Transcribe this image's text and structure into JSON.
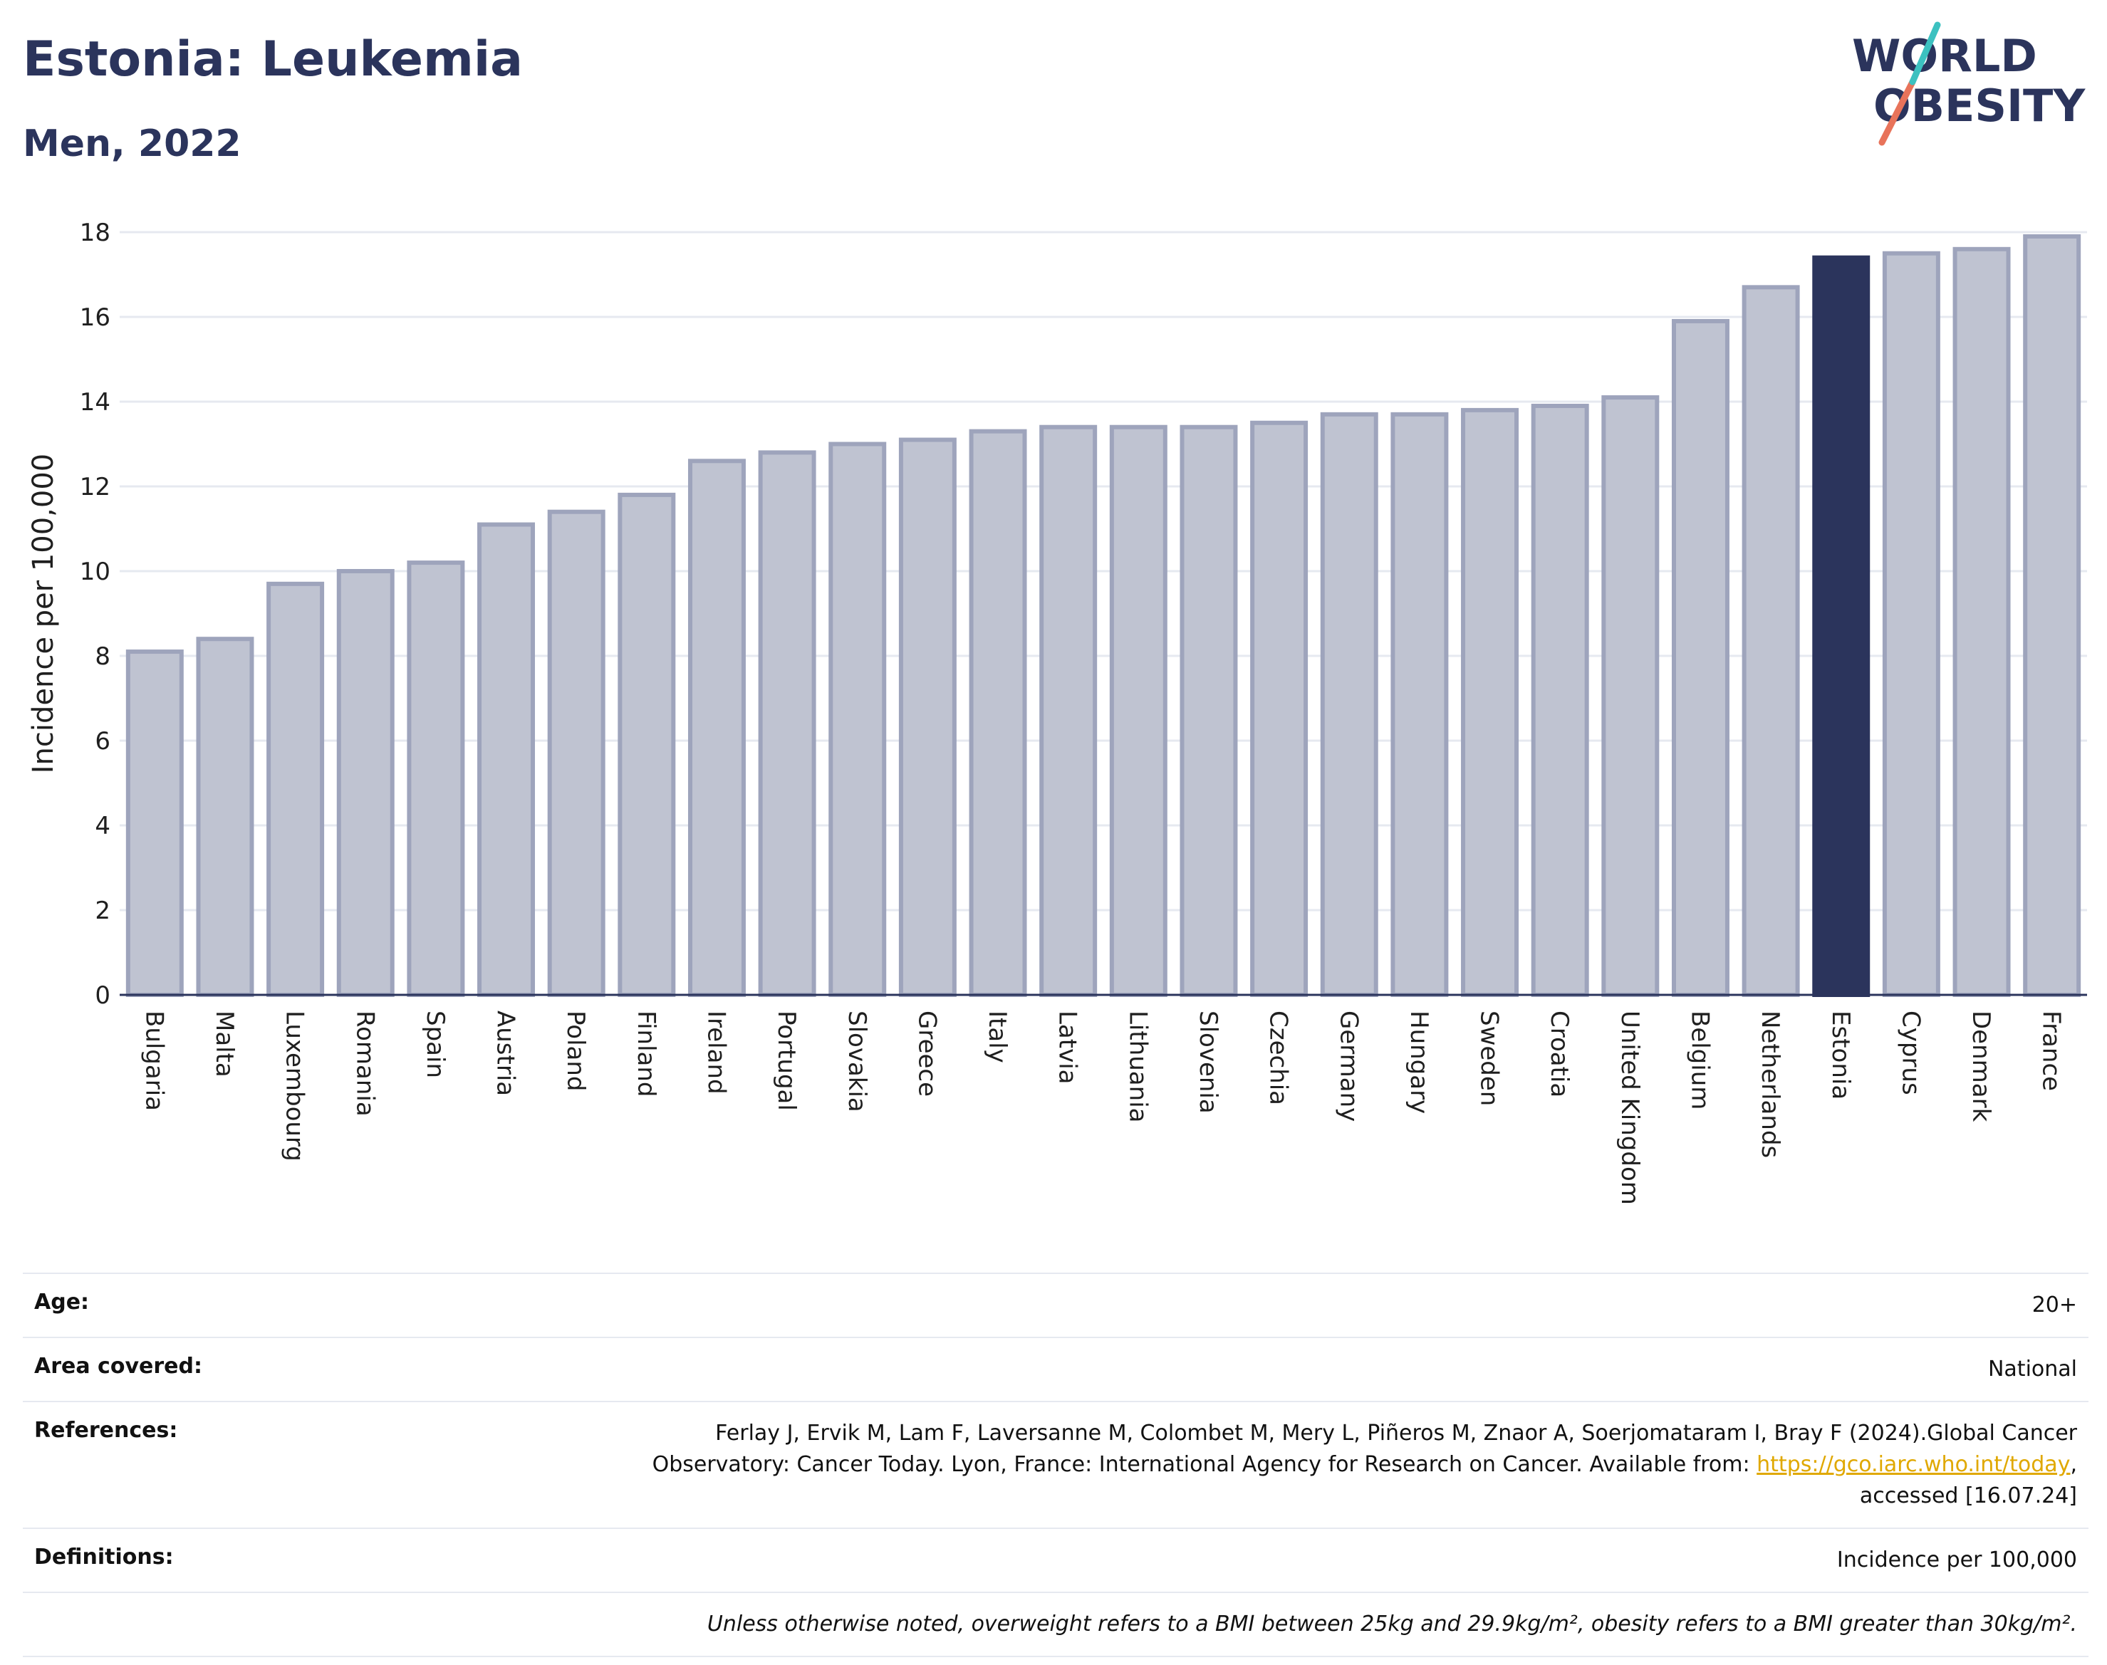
{
  "header": {
    "title": "Estonia: Leukemia",
    "subtitle": "Men, 2022"
  },
  "logo": {
    "line1": "WORLD",
    "line2": "OBESITY"
  },
  "chart_data": {
    "type": "bar",
    "title": "Estonia: Leukemia",
    "subtitle": "Men, 2022",
    "xlabel": "",
    "ylabel": "Incidence per 100,000",
    "ylim": [
      0,
      18
    ],
    "yticks": [
      0,
      2,
      4,
      6,
      8,
      10,
      12,
      14,
      16,
      18
    ],
    "grid": true,
    "highlight": "Estonia",
    "colors": {
      "bar": "#bfc3d1",
      "bar_edge": "#9ea4bc",
      "highlight": "#2b345c"
    },
    "categories": [
      "Bulgaria",
      "Malta",
      "Luxembourg",
      "Romania",
      "Spain",
      "Austria",
      "Poland",
      "Finland",
      "Ireland",
      "Portugal",
      "Slovakia",
      "Greece",
      "Italy",
      "Latvia",
      "Lithuania",
      "Slovenia",
      "Czechia",
      "Germany",
      "Hungary",
      "Sweden",
      "Croatia",
      "United Kingdom",
      "Belgium",
      "Netherlands",
      "Estonia",
      "Cyprus",
      "Denmark",
      "France"
    ],
    "values": [
      8.1,
      8.4,
      9.7,
      10.0,
      10.2,
      11.1,
      11.4,
      11.8,
      12.6,
      12.8,
      13.0,
      13.1,
      13.3,
      13.4,
      13.4,
      13.4,
      13.5,
      13.7,
      13.7,
      13.8,
      13.9,
      14.1,
      15.9,
      16.7,
      17.4,
      17.5,
      17.6,
      17.9
    ]
  },
  "info": {
    "age_label": "Age:",
    "age_value": "20+",
    "area_label": "Area covered:",
    "area_value": "National",
    "references_label": "References:",
    "references_text1": "Ferlay J, Ervik M, Lam F, Laversanne M, Colombet M, Mery L, Piñeros M, Znaor A, Soerjomataram I, Bray F (2024).Global Cancer",
    "references_text2": "Observatory: Cancer Today. Lyon, France: International Agency for Research on Cancer. Available from: ",
    "references_link": "https://gco.iarc.who.int/today",
    "references_text3": ",",
    "references_text4": "accessed [16.07.24]",
    "definitions_label": "Definitions:",
    "definitions_value": "Incidence per 100,000",
    "note": "Unless otherwise noted, overweight refers to a BMI between 25kg and 29.9kg/m², obesity refers to a BMI greater than 30kg/m²."
  }
}
